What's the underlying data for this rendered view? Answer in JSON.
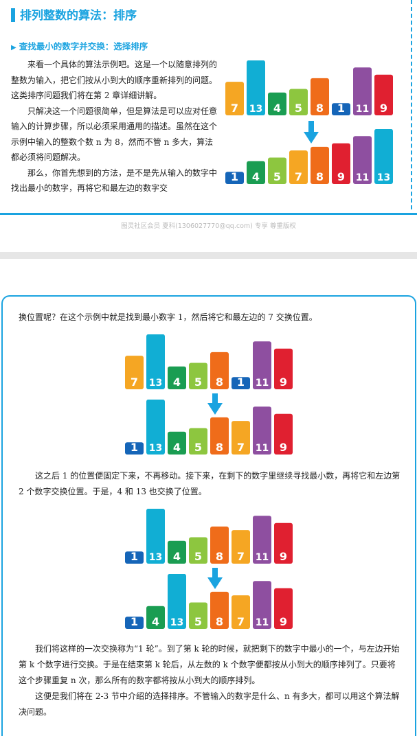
{
  "page1": {
    "section_title": "排列整数的算法：排序",
    "subsection_title": "查找最小的数字并交换：选择排序",
    "paragraphs": [
      "来看一个具体的算法示例吧。这是一个以随意排列的整数为输入，把它们按从小到大的顺序重新排列的问题。这类排序问题我们将在第 2 章详细讲解。",
      "只解决这一个问题很简单，但是算法是可以应对任意输入的计算步骤，所以必须采用通用的描述。虽然在这个示例中输入的整数个数 n 为 8，然而不管 n 多大，算法都必须将问题解决。",
      "那么，你首先想到的方法，是不是先从输入的数字中找出最小的数字，再将它和最左边的数字交"
    ],
    "watermark": "图灵社区会员 夏科(1306027770@qq.com) 专享 尊重版权"
  },
  "page2": {
    "para1": "换位置呢？在这个示例中就是找到最小数字 1，然后将它和最左边的 7 交换位置。",
    "para2": "这之后 1 的位置便固定下来，不再移动。接下来，在剩下的数字里继续寻找最小数，再将它和左边第 2 个数字交换位置。于是，4 和 13 也交换了位置。",
    "para3": "我们将这样的一次交换称为“1 轮”。到了第 k 轮的时候，就把剩下的数字中最小的一个，与左边开始第 k 个数字进行交换。于是在结束第 k 轮后，从左数的 k 个数字便都按从小到大的顺序排列了。只要将这个步骤重复 n 次，那么所有的数字都将按从小到大的顺序排列。",
    "para4": "这便是我们将在 2-3 节中介绍的选择排序。不管输入的数字是什么、n 有多大，都可以用这个算法解决问题。"
  },
  "colors": {
    "1": "#1565b8",
    "4": "#1a9d52",
    "5": "#8dc63f",
    "7": "#f5a623",
    "8": "#ef6c1a",
    "9": "#e02030",
    "11": "#8e4fa0",
    "13": "#11aed4",
    "accent": "#1aa3e0"
  },
  "chart_data": [
    {
      "type": "bar",
      "id": "p1_unsorted",
      "values": [
        7,
        13,
        4,
        5,
        8,
        1,
        11,
        9
      ]
    },
    {
      "type": "bar",
      "id": "p1_sorted",
      "values": [
        1,
        4,
        5,
        7,
        8,
        9,
        11,
        13
      ]
    },
    {
      "type": "bar",
      "id": "round1_before",
      "values": [
        7,
        13,
        4,
        5,
        8,
        1,
        11,
        9
      ]
    },
    {
      "type": "bar",
      "id": "round1_after",
      "values": [
        1,
        13,
        4,
        5,
        8,
        7,
        11,
        9
      ]
    },
    {
      "type": "bar",
      "id": "round2_before",
      "values": [
        1,
        13,
        4,
        5,
        8,
        7,
        11,
        9
      ]
    },
    {
      "type": "bar",
      "id": "round2_after",
      "values": [
        1,
        4,
        13,
        5,
        8,
        7,
        11,
        9
      ]
    }
  ]
}
